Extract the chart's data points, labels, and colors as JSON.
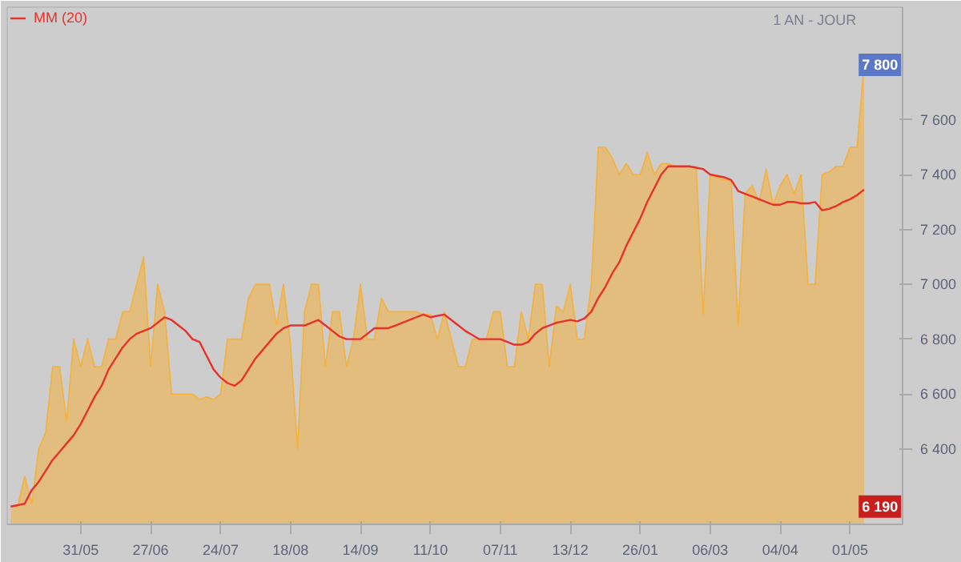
{
  "chart_data": {
    "type": "area",
    "subtitle": "1 AN - JOUR",
    "categories": [
      null,
      null,
      null,
      null,
      null,
      null,
      null,
      null,
      null,
      null,
      "31/05",
      null,
      null,
      null,
      null,
      null,
      null,
      null,
      null,
      null,
      "27/06",
      null,
      null,
      null,
      null,
      null,
      null,
      null,
      null,
      null,
      "24/07",
      null,
      null,
      null,
      null,
      null,
      null,
      null,
      null,
      null,
      "18/08",
      null,
      null,
      null,
      null,
      null,
      null,
      null,
      null,
      null,
      "14/09",
      null,
      null,
      null,
      null,
      null,
      null,
      null,
      null,
      null,
      "11/10",
      null,
      null,
      null,
      null,
      null,
      null,
      null,
      null,
      null,
      "07/11",
      null,
      null,
      null,
      null,
      null,
      null,
      null,
      null,
      null,
      "13/12",
      null,
      null,
      null,
      null,
      null,
      null,
      null,
      null,
      null,
      "26/01",
      null,
      null,
      null,
      null,
      null,
      null,
      null,
      null,
      null,
      "06/03",
      null,
      null,
      null,
      null,
      null,
      null,
      null,
      null,
      null,
      "04/04",
      null,
      null,
      null,
      null,
      null,
      null,
      null,
      null,
      null,
      "01/05",
      null,
      null
    ],
    "series": [
      {
        "color": "#f5b13c",
        "values": [
          6190,
          6190,
          6300,
          6200,
          6400,
          6460,
          6700,
          6700,
          6500,
          6800,
          6700,
          6800,
          6700,
          6700,
          6800,
          6800,
          6900,
          6900,
          7000,
          7100,
          6700,
          7000,
          6900,
          6600,
          6600,
          6600,
          6600,
          6580,
          6590,
          6580,
          6600,
          6800,
          6800,
          6800,
          6950,
          7000,
          7000,
          7000,
          6850,
          7000,
          6780,
          6400,
          6900,
          7000,
          7000,
          6700,
          6900,
          6900,
          6700,
          6800,
          7000,
          6800,
          6800,
          6950,
          6900,
          6900,
          6900,
          6900,
          6900,
          6890,
          6890,
          6800,
          6900,
          6800,
          6700,
          6700,
          6800,
          6800,
          6800,
          6900,
          6900,
          6700,
          6700,
          6900,
          6800,
          7000,
          7000,
          6700,
          6920,
          6900,
          7000,
          6800,
          6800,
          7000,
          7500,
          7500,
          7460,
          7400,
          7440,
          7400,
          7400,
          7480,
          7400,
          7440,
          7440,
          7430,
          7430,
          7430,
          7430,
          6890,
          7400,
          7390,
          7380,
          7380,
          6850,
          7330,
          7360,
          7300,
          7420,
          7290,
          7360,
          7400,
          7330,
          7400,
          7000,
          7000,
          7400,
          7410,
          7430,
          7430,
          7500,
          7500,
          7800
        ]
      },
      {
        "type": "line",
        "name": "MM (20)",
        "color": "#e8312a",
        "values": [
          6190,
          6195,
          6200,
          6250,
          6280,
          6320,
          6360,
          6390,
          6420,
          6450,
          6490,
          6540,
          6590,
          6630,
          6690,
          6730,
          6770,
          6800,
          6820,
          6830,
          6840,
          6860,
          6880,
          6870,
          6850,
          6830,
          6800,
          6790,
          6740,
          6690,
          6660,
          6640,
          6630,
          6650,
          6690,
          6730,
          6760,
          6790,
          6820,
          6840,
          6850,
          6850,
          6850,
          6860,
          6870,
          6850,
          6830,
          6810,
          6800,
          6800,
          6800,
          6820,
          6840,
          6840,
          6840,
          6850,
          6860,
          6870,
          6880,
          6890,
          6880,
          6885,
          6890,
          6870,
          6850,
          6830,
          6815,
          6800,
          6800,
          6800,
          6800,
          6790,
          6780,
          6780,
          6790,
          6820,
          6840,
          6850,
          6860,
          6865,
          6870,
          6865,
          6875,
          6900,
          6950,
          6990,
          7040,
          7080,
          7140,
          7190,
          7240,
          7300,
          7350,
          7400,
          7430,
          7430,
          7430,
          7430,
          7425,
          7420,
          7400,
          7395,
          7390,
          7380,
          7340,
          7330,
          7320,
          7310,
          7300,
          7290,
          7290,
          7300,
          7300,
          7295,
          7295,
          7300,
          7270,
          7275,
          7285,
          7300,
          7310,
          7325,
          7345
        ]
      }
    ],
    "ylim": [
      6125,
      8010
    ],
    "yticks": [
      {
        "value": 6400,
        "label": "6 400"
      },
      {
        "value": 6600,
        "label": "6 600"
      },
      {
        "value": 6800,
        "label": "6 800"
      },
      {
        "value": 7000,
        "label": "7 000"
      },
      {
        "value": 7200,
        "label": "7 200"
      },
      {
        "value": 7400,
        "label": "7 400"
      },
      {
        "value": 7600,
        "label": "7 600"
      }
    ],
    "annotations": [
      {
        "text": "7 800",
        "y": 7800
      },
      {
        "text": "6 190",
        "y": 6190
      }
    ],
    "grid": false,
    "legend": "top left"
  }
}
